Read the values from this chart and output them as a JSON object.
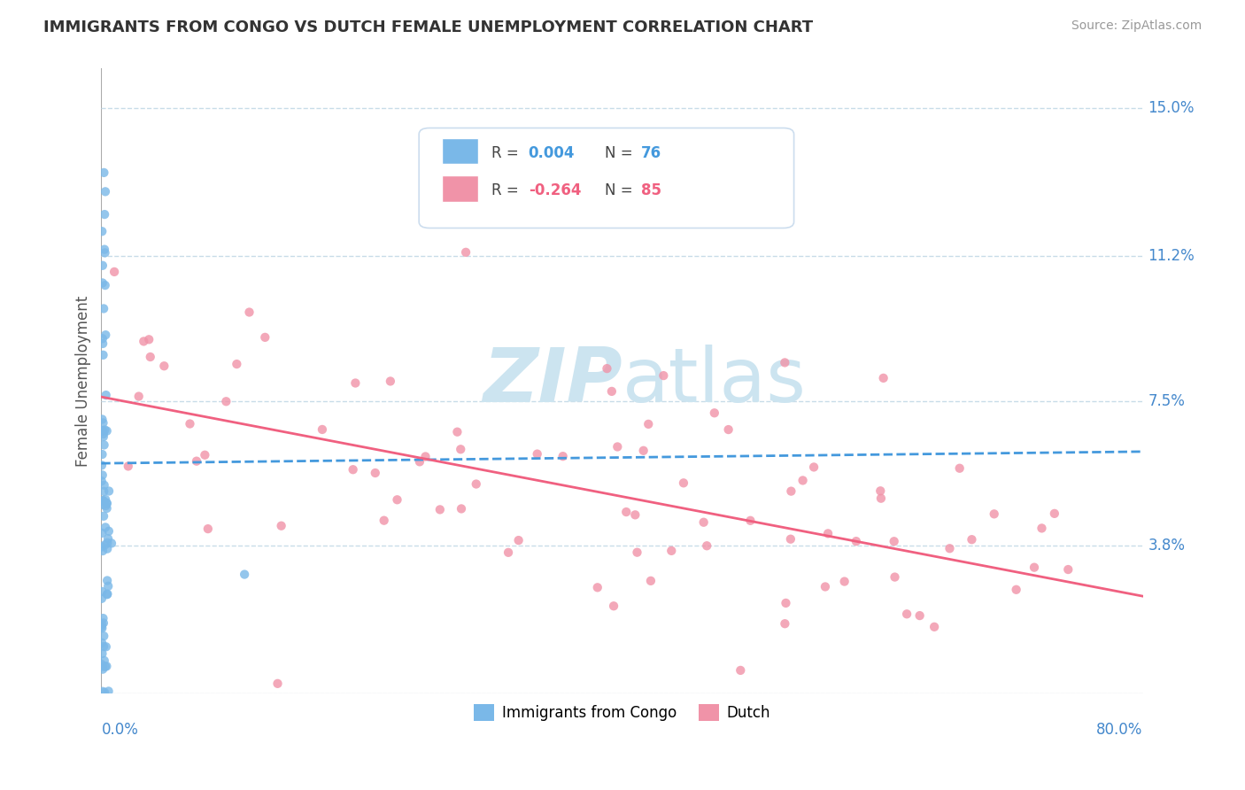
{
  "title": "IMMIGRANTS FROM CONGO VS DUTCH FEMALE UNEMPLOYMENT CORRELATION CHART",
  "source": "Source: ZipAtlas.com",
  "ylabel": "Female Unemployment",
  "xmin": 0.0,
  "xmax": 0.8,
  "ymin": 0.0,
  "ymax": 0.16,
  "series1_color": "#7ab8e8",
  "series2_color": "#f093a8",
  "trendline1_color": "#4499dd",
  "trendline2_color": "#f06080",
  "watermark_color": "#cce4f0",
  "background_color": "#ffffff",
  "grid_color": "#c8dce8",
  "label_color": "#4488cc",
  "ytick_values": [
    0.038,
    0.075,
    0.112,
    0.15
  ],
  "ytick_labels": [
    "3.8%",
    "7.5%",
    "11.2%",
    "15.0%"
  ],
  "r1": "0.004",
  "n1": "76",
  "r2": "-0.264",
  "n2": "85",
  "legend1_label": "Immigrants from Congo",
  "legend2_label": "Dutch",
  "trendline1_y_start": 0.059,
  "trendline1_y_end": 0.062,
  "trendline2_y_start": 0.076,
  "trendline2_y_end": 0.025
}
